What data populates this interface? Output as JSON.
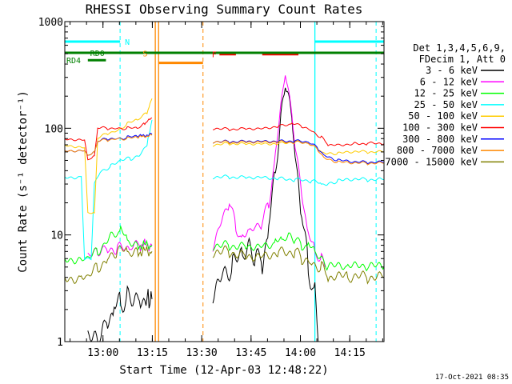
{
  "chart_data": {
    "type": "line",
    "title": "RHESSI Observing Summary Count Rates",
    "xlabel": "Start Time (12-Apr-03 12:48:22)",
    "ylabel": "Count Rate (s⁻¹ detector⁻¹)",
    "yscale": "log",
    "ylim": [
      1,
      1000
    ],
    "xlim_minutes": [
      0,
      97
    ],
    "x_ticks": [
      {
        "t": 11.6,
        "label": "13:00"
      },
      {
        "t": 26.6,
        "label": "13:15"
      },
      {
        "t": 41.6,
        "label": "13:30"
      },
      {
        "t": 56.6,
        "label": "13:45"
      },
      {
        "t": 71.6,
        "label": "14:00"
      },
      {
        "t": 86.6,
        "label": "14:15"
      }
    ],
    "y_ticks": [
      {
        "v": 1,
        "label": "1"
      },
      {
        "v": 10,
        "label": "10"
      },
      {
        "v": 100,
        "label": "100"
      },
      {
        "v": 1000,
        "label": "1000"
      }
    ],
    "legend_header": [
      "Det 1,3,4,5,6,9,",
      "FDecim 1, Att 0"
    ],
    "series": [
      {
        "name": "3 - 6 keV",
        "color": "#000000",
        "segments": [
          [
            [
              7,
              1
            ],
            [
              10,
              1
            ],
            [
              13,
              1.6
            ],
            [
              15,
              2
            ],
            [
              17,
              2.3
            ],
            [
              19,
              2.6
            ],
            [
              21,
              2.4
            ],
            [
              23,
              2.5
            ],
            [
              25,
              2.5
            ],
            [
              26.5,
              2.5
            ]
          ],
          [
            [
              45,
              3.0
            ],
            [
              48,
              4.5
            ],
            [
              51,
              5.0
            ],
            [
              54,
              6.5
            ],
            [
              56,
              8.0
            ],
            [
              58,
              6.0
            ],
            [
              60,
              5.5
            ],
            [
              62,
              12
            ],
            [
              64,
              40
            ],
            [
              66,
              150
            ],
            [
              67,
              270
            ],
            [
              68,
              200
            ],
            [
              69,
              120
            ],
            [
              70,
              60
            ],
            [
              72,
              15
            ],
            [
              74,
              5
            ],
            [
              76,
              2.8
            ],
            [
              77,
              1
            ]
          ]
        ]
      },
      {
        "name": "6 - 12 keV",
        "color": "#ff00ff",
        "segments": [
          [
            [
              7,
              6
            ],
            [
              10,
              7
            ],
            [
              13,
              7.5
            ],
            [
              16,
              7.5
            ],
            [
              20,
              7.5
            ],
            [
              23,
              8
            ],
            [
              26.5,
              8
            ]
          ],
          [
            [
              45,
              8
            ],
            [
              48,
              15
            ],
            [
              50,
              20
            ],
            [
              52,
              12
            ],
            [
              54,
              9
            ],
            [
              56,
              11
            ],
            [
              58,
              12
            ],
            [
              60,
              13
            ],
            [
              62,
              20
            ],
            [
              64,
              55
            ],
            [
              66,
              200
            ],
            [
              67,
              320
            ],
            [
              68,
              230
            ],
            [
              69,
              130
            ],
            [
              70,
              70
            ],
            [
              72,
              25
            ],
            [
              74,
              10
            ],
            [
              76,
              7
            ],
            [
              78,
              6
            ],
            [
              79,
              5
            ]
          ]
        ]
      },
      {
        "name": "12 - 25 keV",
        "color": "#00ff00",
        "segments": [
          [
            [
              0,
              6
            ],
            [
              6,
              6
            ],
            [
              7,
              6
            ],
            [
              10,
              7
            ],
            [
              14,
              10
            ],
            [
              17,
              11
            ],
            [
              19,
              9
            ],
            [
              22,
              8
            ],
            [
              26.5,
              8
            ]
          ],
          [
            [
              45,
              8
            ],
            [
              50,
              8
            ],
            [
              55,
              8
            ],
            [
              60,
              8
            ],
            [
              64,
              8.5
            ],
            [
              66,
              9
            ],
            [
              68,
              10
            ],
            [
              70,
              9
            ],
            [
              72,
              8
            ],
            [
              74,
              8
            ],
            [
              76,
              7
            ],
            [
              78,
              6
            ],
            [
              80,
              5
            ],
            [
              86,
              5
            ],
            [
              92,
              5
            ],
            [
              97,
              5
            ]
          ]
        ]
      },
      {
        "name": "25 - 50 keV",
        "color": "#00ffff",
        "segments": [
          [
            [
              0,
              35
            ],
            [
              5,
              35
            ],
            [
              6,
              6
            ],
            [
              8,
              6
            ],
            [
              9,
              30
            ],
            [
              11,
              40
            ],
            [
              14,
              44
            ],
            [
              17,
              50
            ],
            [
              20,
              52
            ],
            [
              23,
              57
            ],
            [
              25,
              70
            ],
            [
              26.5,
              120
            ]
          ],
          [
            [
              45,
              35
            ],
            [
              50,
              35
            ],
            [
              55,
              35
            ],
            [
              60,
              35
            ],
            [
              65,
              34
            ],
            [
              70,
              33
            ],
            [
              75,
              32
            ],
            [
              78,
              30
            ],
            [
              80,
              30
            ],
            [
              83,
              32
            ],
            [
              88,
              33
            ],
            [
              92,
              33
            ],
            [
              97,
              33
            ]
          ]
        ]
      },
      {
        "name": "50 - 100 keV",
        "color": "#ffcc00",
        "segments": [
          [
            [
              0,
              70
            ],
            [
              6,
              66
            ],
            [
              7,
              16
            ],
            [
              9,
              16
            ],
            [
              10,
              80
            ],
            [
              13,
              90
            ],
            [
              16,
              95
            ],
            [
              19,
              110
            ],
            [
              22,
              120
            ],
            [
              25,
              140
            ],
            [
              26.5,
              190
            ]
          ],
          [
            [
              45,
              70
            ],
            [
              50,
              72
            ],
            [
              55,
              72
            ],
            [
              60,
              72
            ],
            [
              65,
              72
            ],
            [
              70,
              75
            ],
            [
              74,
              72
            ],
            [
              78,
              60
            ],
            [
              80,
              58
            ],
            [
              83,
              58
            ],
            [
              88,
              60
            ],
            [
              92,
              60
            ],
            [
              97,
              60
            ]
          ]
        ]
      },
      {
        "name": "100 - 300 keV",
        "color": "#ff0000",
        "segments": [
          [
            [
              0,
              80
            ],
            [
              6,
              78
            ],
            [
              7,
              50
            ],
            [
              9,
              55
            ],
            [
              10,
              100
            ],
            [
              13,
              100
            ],
            [
              16,
              100
            ],
            [
              19,
              100
            ],
            [
              22,
              100
            ],
            [
              24,
              110
            ],
            [
              26.5,
              125
            ]
          ],
          [
            [
              45,
              100
            ],
            [
              50,
              98
            ],
            [
              55,
              100
            ],
            [
              60,
              100
            ],
            [
              65,
              105
            ],
            [
              69,
              110
            ],
            [
              72,
              105
            ],
            [
              75,
              95
            ],
            [
              78,
              82
            ],
            [
              80,
              70
            ],
            [
              83,
              70
            ],
            [
              88,
              72
            ],
            [
              92,
              72
            ],
            [
              97,
              72
            ]
          ]
        ]
      },
      {
        "name": "300 - 800 keV",
        "color": "#0000ff",
        "segments": [
          [
            [
              0,
              62
            ],
            [
              6,
              62
            ],
            [
              7,
              55
            ],
            [
              9,
              60
            ],
            [
              10,
              75
            ],
            [
              13,
              80
            ],
            [
              16,
              80
            ],
            [
              19,
              82
            ],
            [
              22,
              84
            ],
            [
              26.5,
              88
            ]
          ],
          [
            [
              45,
              75
            ],
            [
              50,
              75
            ],
            [
              55,
              76
            ],
            [
              60,
              76
            ],
            [
              65,
              76
            ],
            [
              70,
              76
            ],
            [
              74,
              74
            ],
            [
              77,
              65
            ],
            [
              79,
              55
            ],
            [
              83,
              50
            ],
            [
              88,
              48
            ],
            [
              92,
              48
            ],
            [
              97,
              48
            ]
          ]
        ]
      },
      {
        "name": "800 - 7000 keV",
        "color": "#ff8800",
        "segments": [
          [
            [
              0,
              62
            ],
            [
              6,
              62
            ],
            [
              7,
              55
            ],
            [
              9,
              60
            ],
            [
              10,
              75
            ],
            [
              13,
              78
            ],
            [
              16,
              80
            ],
            [
              19,
              80
            ],
            [
              22,
              82
            ],
            [
              26.5,
              86
            ]
          ],
          [
            [
              45,
              75
            ],
            [
              50,
              74
            ],
            [
              55,
              75
            ],
            [
              60,
              75
            ],
            [
              65,
              75
            ],
            [
              70,
              74
            ],
            [
              74,
              72
            ],
            [
              77,
              63
            ],
            [
              79,
              52
            ],
            [
              83,
              48
            ],
            [
              88,
              47
            ],
            [
              92,
              47
            ],
            [
              97,
              47
            ]
          ]
        ]
      },
      {
        "name": "7000 - 15000 keV",
        "color": "#808000",
        "segments": [
          [
            [
              0,
              4
            ],
            [
              5,
              4
            ],
            [
              7,
              4
            ],
            [
              10,
              5
            ],
            [
              13,
              6
            ],
            [
              16,
              7
            ],
            [
              19,
              7
            ],
            [
              22,
              7
            ],
            [
              26.5,
              7
            ]
          ],
          [
            [
              45,
              7
            ],
            [
              50,
              7
            ],
            [
              55,
              6.5
            ],
            [
              60,
              6.5
            ],
            [
              65,
              7
            ],
            [
              70,
              7
            ],
            [
              72,
              6
            ],
            [
              75,
              5.5
            ],
            [
              78,
              5
            ],
            [
              80,
              4
            ],
            [
              86,
              4
            ],
            [
              92,
              4
            ],
            [
              97,
              4
            ]
          ]
        ]
      }
    ],
    "markers": [
      {
        "label": "N",
        "color": "#00ffff",
        "bars": [
          [
            0,
            16.8
          ],
          [
            76,
            97
          ]
        ],
        "level": 650,
        "vlines_solid": [
          76
        ],
        "vlines_dashed": [
          16.8,
          94.6
        ]
      },
      {
        "label": "S",
        "color": "#ff8800",
        "bars": [
          [
            28.5,
            42
          ]
        ],
        "level": 410,
        "vlines_solid": [
          27.5,
          28.5
        ],
        "vlines_dashed": [
          42
        ]
      },
      {
        "label": "F",
        "color": "#ff0000",
        "bars": [
          [
            47,
            52
          ],
          [
            60,
            71
          ]
        ],
        "level": 495
      },
      {
        "label": "RD0",
        "color": "#008000",
        "bars": [
          [
            0,
            97
          ]
        ],
        "level": 510
      },
      {
        "label": "RD4",
        "color": "#008000",
        "bars": [
          [
            7,
            12.5
          ]
        ],
        "level": 435
      }
    ],
    "footer_date": "17-Oct-2021 08:35"
  }
}
